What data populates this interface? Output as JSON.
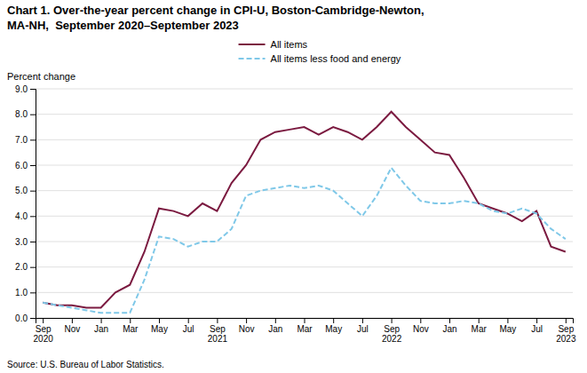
{
  "chart_data": {
    "type": "line",
    "title": "Chart 1. Over-the-year percent change in CPI-U, Boston-Cambridge-Newton,\nMA-NH,  September 2020–September 2023",
    "y_label": "Percent change",
    "annotations": [
      "Source: U.S. Bureau of Labor Statistics."
    ],
    "categories": [
      "Sep\n2020",
      null,
      "Nov",
      null,
      "Jan",
      null,
      "Mar",
      null,
      "May",
      null,
      "Jul",
      null,
      "Sep\n2021",
      null,
      "Nov",
      null,
      "Jan",
      null,
      "Mar",
      null,
      "May",
      null,
      "Jul",
      null,
      "Sep\n2022",
      null,
      "Nov",
      null,
      "Jan",
      null,
      "Mar",
      null,
      "May",
      null,
      "Jul",
      null,
      "Sep\n2023"
    ],
    "series": [
      {
        "name": "All items",
        "color": "#7b1a40",
        "line_style": "solid",
        "values": [
          0.6,
          0.5,
          0.5,
          0.4,
          0.4,
          1.0,
          1.3,
          2.6,
          4.3,
          4.2,
          4.0,
          4.5,
          4.2,
          5.3,
          6.0,
          7.0,
          7.3,
          7.4,
          7.5,
          7.2,
          7.5,
          7.3,
          7.0,
          7.5,
          8.1,
          7.5,
          7.0,
          6.5,
          6.4,
          5.5,
          4.5,
          4.3,
          4.1,
          3.8,
          4.2,
          2.8,
          2.6
        ]
      },
      {
        "name": "All items less food and energy",
        "color": "#7fc8e8",
        "line_style": "dashed",
        "values": [
          0.6,
          0.5,
          0.4,
          0.3,
          0.2,
          0.2,
          0.2,
          1.5,
          3.2,
          3.1,
          2.8,
          3.0,
          3.0,
          3.5,
          4.8,
          5.0,
          5.1,
          5.2,
          5.1,
          5.2,
          5.0,
          4.5,
          4.0,
          4.8,
          5.9,
          5.2,
          4.6,
          4.5,
          4.5,
          4.6,
          4.5,
          4.2,
          4.1,
          4.3,
          4.1,
          3.5,
          3.1
        ]
      }
    ],
    "ylim": [
      0.0,
      9.0
    ],
    "yticks": [
      {
        "value": 0.0,
        "label": "0.0"
      },
      {
        "value": 1.0,
        "label": "1.0"
      },
      {
        "value": 2.0,
        "label": "2.0"
      },
      {
        "value": 3.0,
        "label": "3.0"
      },
      {
        "value": 4.0,
        "label": "4.0"
      },
      {
        "value": 5.0,
        "label": "5.0"
      },
      {
        "value": 6.0,
        "label": "6.0"
      },
      {
        "value": 7.0,
        "label": "7.0"
      },
      {
        "value": 8.0,
        "label": "8.0"
      },
      {
        "value": 9.0,
        "label": "9.0"
      }
    ],
    "grid": true,
    "legend": "top"
  }
}
